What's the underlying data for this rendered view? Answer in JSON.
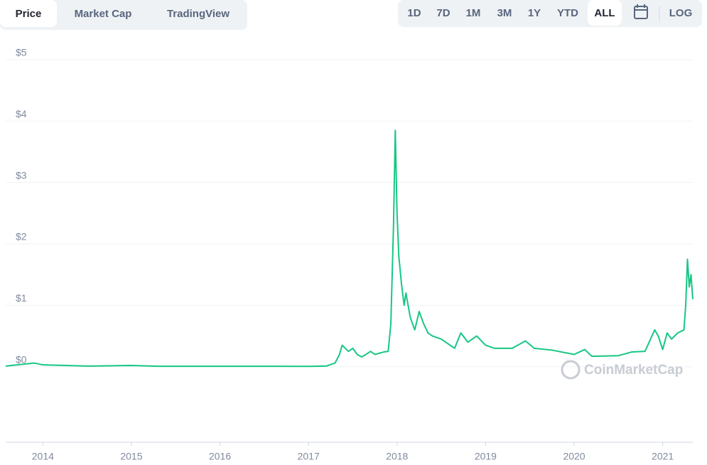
{
  "tabs": [
    "Price",
    "Market Cap",
    "TradingView"
  ],
  "active_tab": "Price",
  "ranges": [
    "1D",
    "7D",
    "1M",
    "3M",
    "1Y",
    "YTD",
    "ALL",
    "LOG"
  ],
  "active_range": "ALL",
  "chart_data": {
    "type": "line",
    "watermark": "CoinMarketCap",
    "x": [
      2013.58,
      2013.9,
      2014.0,
      2014.5,
      2015.0,
      2015.3,
      2016.0,
      2017.0,
      2017.2,
      2017.3,
      2017.35,
      2017.38,
      2017.45,
      2017.5,
      2017.55,
      2017.6,
      2017.65,
      2017.7,
      2017.75,
      2017.8,
      2017.85,
      2017.9,
      2017.93,
      2017.96,
      2017.98,
      2018.0,
      2018.02,
      2018.05,
      2018.08,
      2018.1,
      2018.15,
      2018.2,
      2018.25,
      2018.3,
      2018.35,
      2018.4,
      2018.5,
      2018.6,
      2018.65,
      2018.72,
      2018.8,
      2018.9,
      2019.0,
      2019.1,
      2019.3,
      2019.45,
      2019.55,
      2019.75,
      2020.0,
      2020.12,
      2020.2,
      2020.5,
      2020.65,
      2020.8,
      2020.91,
      2020.95,
      2021.0,
      2021.05,
      2021.1,
      2021.17,
      2021.24,
      2021.26,
      2021.28,
      2021.3,
      2021.32,
      2021.34
    ],
    "series": [
      {
        "name": "Price",
        "color": "#16c784",
        "values": [
          0.01,
          0.06,
          0.03,
          0.01,
          0.02,
          0.008,
          0.008,
          0.006,
          0.01,
          0.06,
          0.2,
          0.35,
          0.25,
          0.3,
          0.2,
          0.16,
          0.2,
          0.25,
          0.2,
          0.22,
          0.24,
          0.25,
          0.7,
          2.3,
          3.85,
          2.5,
          1.8,
          1.35,
          1.0,
          1.2,
          0.8,
          0.6,
          0.9,
          0.7,
          0.55,
          0.5,
          0.45,
          0.35,
          0.3,
          0.55,
          0.4,
          0.5,
          0.35,
          0.3,
          0.3,
          0.42,
          0.3,
          0.27,
          0.2,
          0.28,
          0.17,
          0.18,
          0.24,
          0.25,
          0.6,
          0.5,
          0.28,
          0.55,
          0.45,
          0.55,
          0.6,
          1.0,
          1.75,
          1.3,
          1.5,
          1.1
        ]
      }
    ],
    "xlim": [
      2013.58,
      2021.34
    ],
    "xticks": [
      2014,
      2015,
      2016,
      2017,
      2018,
      2019,
      2020,
      2021
    ],
    "ylim": [
      -1.23,
      5.3
    ],
    "yticks": [
      {
        "value": 0,
        "label": "$0"
      },
      {
        "value": 1,
        "label": "$1"
      },
      {
        "value": 2,
        "label": "$2"
      },
      {
        "value": 3,
        "label": "$3"
      },
      {
        "value": 4,
        "label": "$4"
      },
      {
        "value": 5,
        "label": "$5"
      }
    ],
    "grid": true
  }
}
